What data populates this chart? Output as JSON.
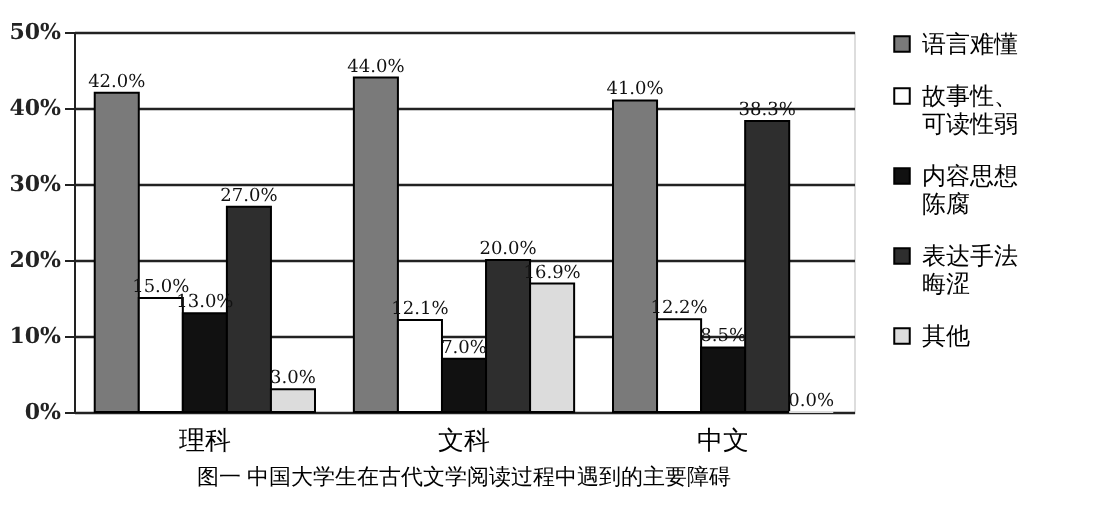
{
  "chart_data": {
    "type": "bar",
    "title": "图一 中国大学生在古代文学阅读过程中遇到的主要障碍",
    "categories": [
      "理科",
      "文科",
      "中文"
    ],
    "series": [
      {
        "name": "语言难懂",
        "color": "#7a7a7a",
        "values": [
          42.0,
          44.0,
          41.0
        ],
        "value_labels": [
          "42.0%",
          "44.0%",
          "41.0%"
        ]
      },
      {
        "name": "故事性、可读性弱",
        "color": "#ffffff",
        "values": [
          15.0,
          12.1,
          12.2
        ],
        "value_labels": [
          "15.0%",
          "12.1%",
          "12.2%"
        ]
      },
      {
        "name": "内容思想陈腐",
        "color": "#111111",
        "values": [
          13.0,
          7.0,
          8.5
        ],
        "value_labels": [
          "13.0%",
          "7.0%",
          "8.5%"
        ]
      },
      {
        "name": "表达手法晦涩",
        "color": "#2e2e2e",
        "values": [
          27.0,
          20.0,
          38.3
        ],
        "value_labels": [
          "27.0%",
          "20.0%",
          "38.3%"
        ]
      },
      {
        "name": "其他",
        "color": "#dcdcdc",
        "values": [
          3.0,
          16.9,
          0.0
        ],
        "value_labels": [
          "3.0%",
          "16.9%",
          "0.0%"
        ]
      }
    ],
    "ylim": [
      0,
      50
    ],
    "yticks": [
      {
        "value": 0,
        "label": "0%"
      },
      {
        "value": 10,
        "label": "10%"
      },
      {
        "value": 20,
        "label": "20%"
      },
      {
        "value": 30,
        "label": "30%"
      },
      {
        "value": 40,
        "label": "40%"
      },
      {
        "value": 50,
        "label": "50%"
      }
    ],
    "grid": "y",
    "legend": "right"
  }
}
